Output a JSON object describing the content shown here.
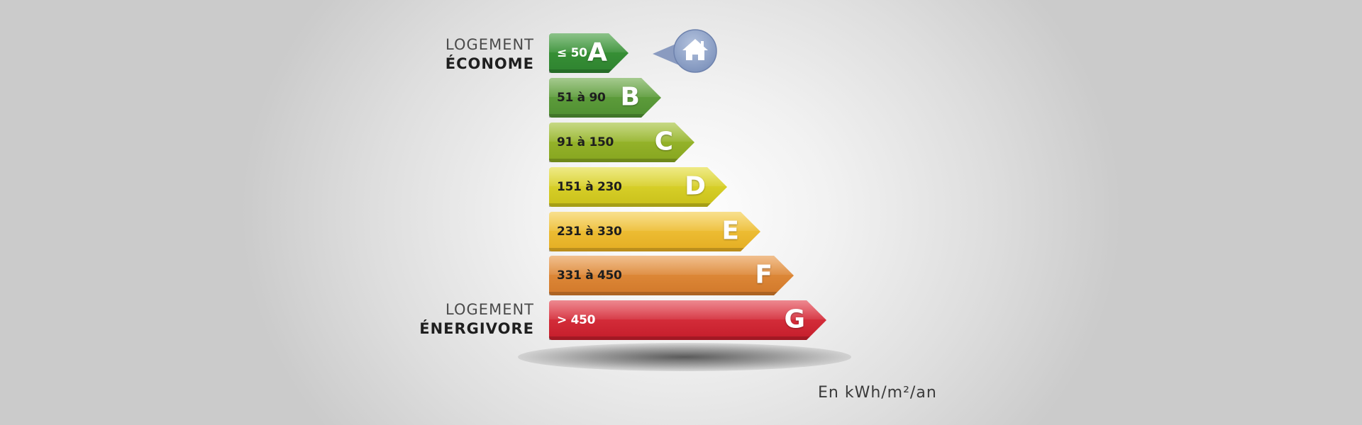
{
  "labels": {
    "top_line1": "LOGEMENT",
    "top_line2": "ÉCONOME",
    "bottom_line1": "LOGEMENT",
    "bottom_line2": "ÉNERGIVORE"
  },
  "classes": [
    {
      "letter": "A",
      "range": "≤ 50",
      "color": "#2e8b34"
    },
    {
      "letter": "B",
      "range": "51 à 90",
      "color": "#5a9a38"
    },
    {
      "letter": "C",
      "range": "91 à 150",
      "color": "#95b42a"
    },
    {
      "letter": "D",
      "range": "151 à 230",
      "color": "#d8cf28"
    },
    {
      "letter": "E",
      "range": "231 à 330",
      "color": "#efbd30"
    },
    {
      "letter": "F",
      "range": "331 à 450",
      "color": "#e08538"
    },
    {
      "letter": "G",
      "range": "> 450",
      "color": "#d52a38"
    }
  ],
  "current_class": "A",
  "marker_icon": "house-icon",
  "unit": "En kWh/m²/an"
}
